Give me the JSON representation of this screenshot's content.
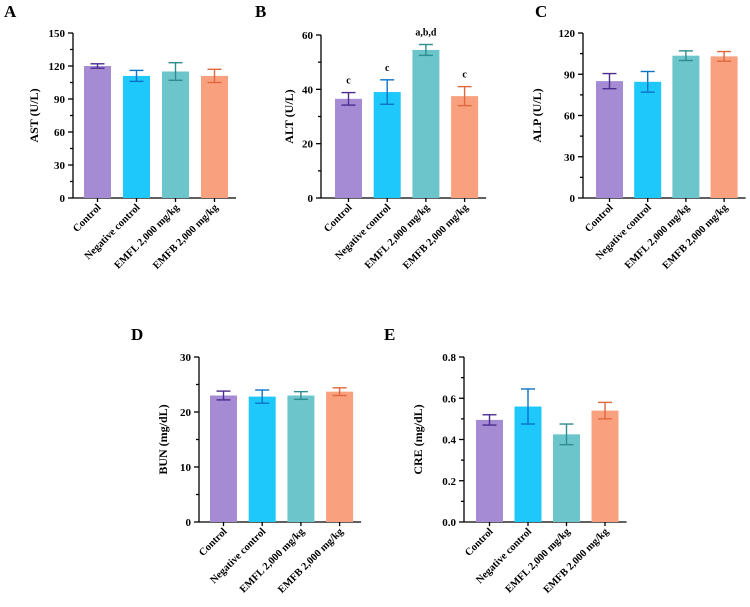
{
  "colors": [
    "#a58bd3",
    "#1ec8fb",
    "#6dc5cc",
    "#f9a07f"
  ],
  "errorbar_colors": [
    "#4a2d8f",
    "#0b73c8",
    "#2d8c8f",
    "#e0683e"
  ],
  "chart_data": [
    {
      "panel": "A",
      "type": "bar",
      "ylabel": "AST (U/L)",
      "categories": [
        "Control",
        "Negative control",
        "EMFL 2,000 mg/kg",
        "EMFB 2,000 mg/kg"
      ],
      "values": [
        120,
        111,
        115,
        111
      ],
      "errors": [
        2,
        5,
        8,
        6
      ],
      "annotations": [
        "",
        "",
        "",
        ""
      ],
      "ylim": [
        0,
        150
      ],
      "yticks": [
        0,
        30,
        60,
        90,
        120,
        150
      ],
      "minor_per_major": 2
    },
    {
      "panel": "B",
      "type": "bar",
      "ylabel": "ALT (U/L)",
      "categories": [
        "Control",
        "Negative control",
        "EMFL 2,000 mg/kg",
        "EMFB 2,000 mg/kg"
      ],
      "values": [
        36.5,
        39,
        54.5,
        37.5
      ],
      "errors": [
        2.3,
        4.5,
        2,
        3.5
      ],
      "annotations": [
        "c",
        "c",
        "a,b,d",
        "c"
      ],
      "ylim": [
        0,
        60
      ],
      "yticks": [
        0,
        20,
        40,
        60
      ],
      "minor_per_major": 2
    },
    {
      "panel": "C",
      "type": "bar",
      "ylabel": "ALP (U/L)",
      "categories": [
        "Control",
        "Negative control",
        "EMFL 2,000 mg/kg",
        "EMFB 2,000 mg/kg"
      ],
      "values": [
        85,
        84.5,
        103.5,
        103
      ],
      "errors": [
        5.5,
        7.5,
        3.5,
        3.5
      ],
      "annotations": [
        "",
        "",
        "",
        ""
      ],
      "ylim": [
        0,
        120
      ],
      "yticks": [
        0,
        30,
        60,
        90,
        120
      ],
      "minor_per_major": 2
    },
    {
      "panel": "D",
      "type": "bar",
      "ylabel": "BUN (mg/dL)",
      "categories": [
        "Control",
        "Negative control",
        "EMFL 2,000 mg/kg",
        "EMFB 2,000 mg/kg"
      ],
      "values": [
        23,
        22.8,
        23,
        23.7
      ],
      "errors": [
        0.8,
        1.2,
        0.7,
        0.7
      ],
      "annotations": [
        "",
        "",
        "",
        ""
      ],
      "ylim": [
        0,
        30
      ],
      "yticks": [
        0,
        10,
        20,
        30
      ],
      "minor_per_major": 2
    },
    {
      "panel": "E",
      "type": "bar",
      "ylabel": "CRE (mg/dL)",
      "categories": [
        "Control",
        "Negative control",
        "EMFL 2,000 mg/kg",
        "EMFB 2,000 mg/kg"
      ],
      "values": [
        0.495,
        0.56,
        0.425,
        0.54
      ],
      "errors": [
        0.025,
        0.085,
        0.05,
        0.04
      ],
      "annotations": [
        "",
        "",
        "",
        ""
      ],
      "ylim": [
        0,
        0.8
      ],
      "yticks": [
        "0.0",
        "0.2",
        "0.4",
        "0.6",
        "0.8"
      ],
      "minor_per_major": 2
    }
  ]
}
